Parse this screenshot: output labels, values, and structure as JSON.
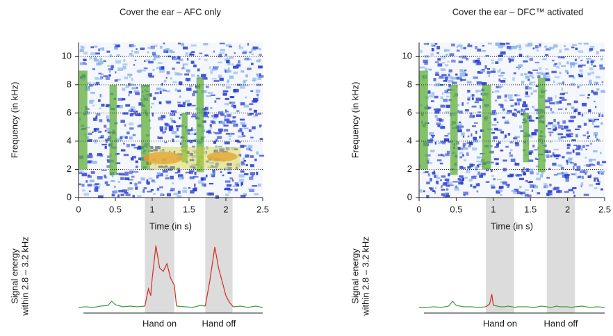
{
  "chart_data": [
    {
      "type": "spectrogram",
      "title": "Cover the ear – AFC only",
      "xlabel": "Time (in s)",
      "ylabel": "Frequency (in kHz)",
      "xlim": [
        0,
        2.5
      ],
      "xticks": [
        0,
        0.5,
        1,
        1.5,
        2,
        2.5
      ],
      "ylim": [
        0,
        11
      ],
      "yticks": [
        0,
        2,
        4,
        6,
        8,
        10
      ],
      "grid": true,
      "hot_band": true
    },
    {
      "type": "line",
      "ylabel": [
        "Signal energy",
        "within 2.8 – 3.2 kHz"
      ],
      "xlim": [
        0,
        2.5
      ],
      "ylim": [
        0,
        100
      ],
      "spans": [
        {
          "x": [
            0.9,
            1.3
          ],
          "label": "Hand on"
        },
        {
          "x": [
            1.72,
            2.09
          ],
          "label": "Hand off"
        }
      ],
      "x": [
        0,
        0.1,
        0.2,
        0.3,
        0.4,
        0.45,
        0.5,
        0.6,
        0.7,
        0.8,
        0.9,
        0.95,
        0.98,
        1.0,
        1.05,
        1.1,
        1.15,
        1.2,
        1.25,
        1.3,
        1.33,
        1.45,
        1.55,
        1.65,
        1.72,
        1.78,
        1.85,
        1.9,
        1.95,
        2.0,
        2.05,
        2.1,
        2.2,
        2.3,
        2.4,
        2.5
      ],
      "series": [
        {
          "color": "#3c9b3c",
          "values": [
            3,
            4,
            3,
            5,
            6,
            12,
            7,
            4,
            5,
            4,
            5,
            null,
            null,
            null,
            null,
            null,
            null,
            null,
            null,
            null,
            5,
            4,
            3,
            6,
            5,
            null,
            null,
            null,
            null,
            null,
            null,
            4,
            5,
            3,
            5,
            3
          ]
        },
        {
          "color": "#d42a1f",
          "values": [
            null,
            null,
            null,
            null,
            null,
            null,
            null,
            null,
            null,
            null,
            5,
            30,
            20,
            45,
            92,
            60,
            55,
            66,
            45,
            35,
            5,
            null,
            null,
            null,
            5,
            40,
            90,
            60,
            40,
            20,
            10,
            4,
            null,
            null,
            null,
            null
          ]
        }
      ]
    },
    {
      "type": "spectrogram",
      "title": "Cover the ear – DFC™ activated",
      "xlabel": "Time (in s)",
      "ylabel": "Frequency (in kHz)",
      "xlim": [
        0,
        2.5
      ],
      "xticks": [
        0,
        0.5,
        1,
        1.5,
        2,
        2.5
      ],
      "ylim": [
        0,
        11
      ],
      "yticks": [
        0,
        2,
        4,
        6,
        8,
        10
      ],
      "grid": true,
      "hot_band": false
    },
    {
      "type": "line",
      "ylabel": [
        "Signal energy",
        "within 2.8 – 3.2 kHz"
      ],
      "xlim": [
        0,
        2.5
      ],
      "ylim": [
        0,
        100
      ],
      "spans": [
        {
          "x": [
            0.9,
            1.28
          ],
          "label": "Hand on"
        },
        {
          "x": [
            1.72,
            2.1
          ],
          "label": "Hand off"
        }
      ],
      "x": [
        0,
        0.1,
        0.2,
        0.3,
        0.4,
        0.45,
        0.5,
        0.6,
        0.7,
        0.8,
        0.9,
        0.95,
        0.98,
        1.0,
        1.05,
        1.1,
        1.15,
        1.2,
        1.25,
        1.3,
        1.33,
        1.45,
        1.55,
        1.65,
        1.72,
        1.78,
        1.85,
        1.9,
        1.95,
        2.0,
        2.05,
        2.1,
        2.2,
        2.3,
        2.4,
        2.5
      ],
      "series": [
        {
          "color": "#3c9b3c",
          "values": [
            3,
            3,
            4,
            3,
            5,
            12,
            6,
            4,
            4,
            3,
            4,
            null,
            null,
            6,
            5,
            4,
            4,
            5,
            4,
            3,
            4,
            4,
            3,
            5,
            4,
            3,
            5,
            4,
            4,
            4,
            3,
            4,
            5,
            3,
            4,
            3
          ]
        },
        {
          "color": "#d42a1f",
          "values": [
            null,
            null,
            null,
            null,
            null,
            null,
            null,
            null,
            null,
            null,
            4,
            8,
            22,
            6,
            null,
            null,
            null,
            null,
            null,
            null,
            null,
            null,
            null,
            null,
            null,
            null,
            null,
            null,
            null,
            null,
            null,
            null,
            null,
            null,
            null,
            null
          ]
        }
      ]
    }
  ]
}
